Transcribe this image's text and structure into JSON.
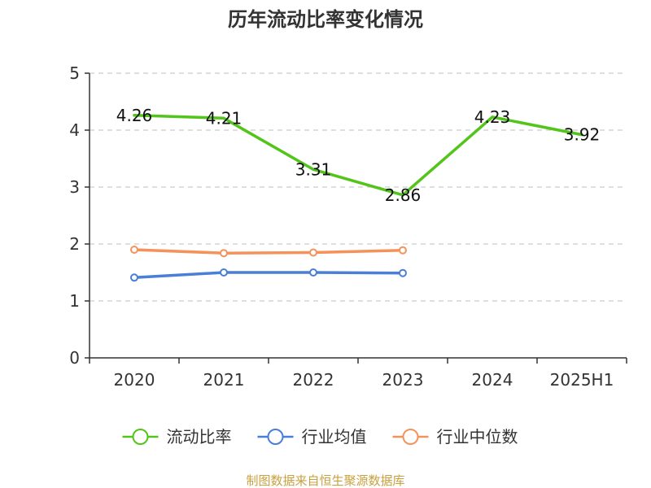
{
  "chart_data": {
    "type": "line",
    "title": "历年流动比率变化情况",
    "categories": [
      "2020",
      "2021",
      "2022",
      "2023",
      "2024",
      "2025H1"
    ],
    "y_ticks": [
      "0",
      "1",
      "2",
      "3",
      "4",
      "5"
    ],
    "ylim": [
      0,
      5
    ],
    "grid": true,
    "legend_position": "bottom",
    "series": [
      {
        "name": "流动比率",
        "color": "#52c41a",
        "values": [
          4.26,
          4.21,
          3.31,
          2.86,
          4.23,
          3.92
        ],
        "labels": [
          "4.26",
          "4.21",
          "3.31",
          "2.86",
          "4.23",
          "3.92"
        ],
        "show_labels": true,
        "show_markers": false
      },
      {
        "name": "行业均值",
        "color": "#4a7fd8",
        "values": [
          1.41,
          1.5,
          1.5,
          1.49,
          null,
          null
        ],
        "show_labels": false,
        "show_markers": true
      },
      {
        "name": "行业中位数",
        "color": "#f5925a",
        "values": [
          1.9,
          1.84,
          1.85,
          1.89,
          null,
          null
        ],
        "show_labels": false,
        "show_markers": true
      }
    ],
    "source": "制图数据来自恒生聚源数据库"
  }
}
